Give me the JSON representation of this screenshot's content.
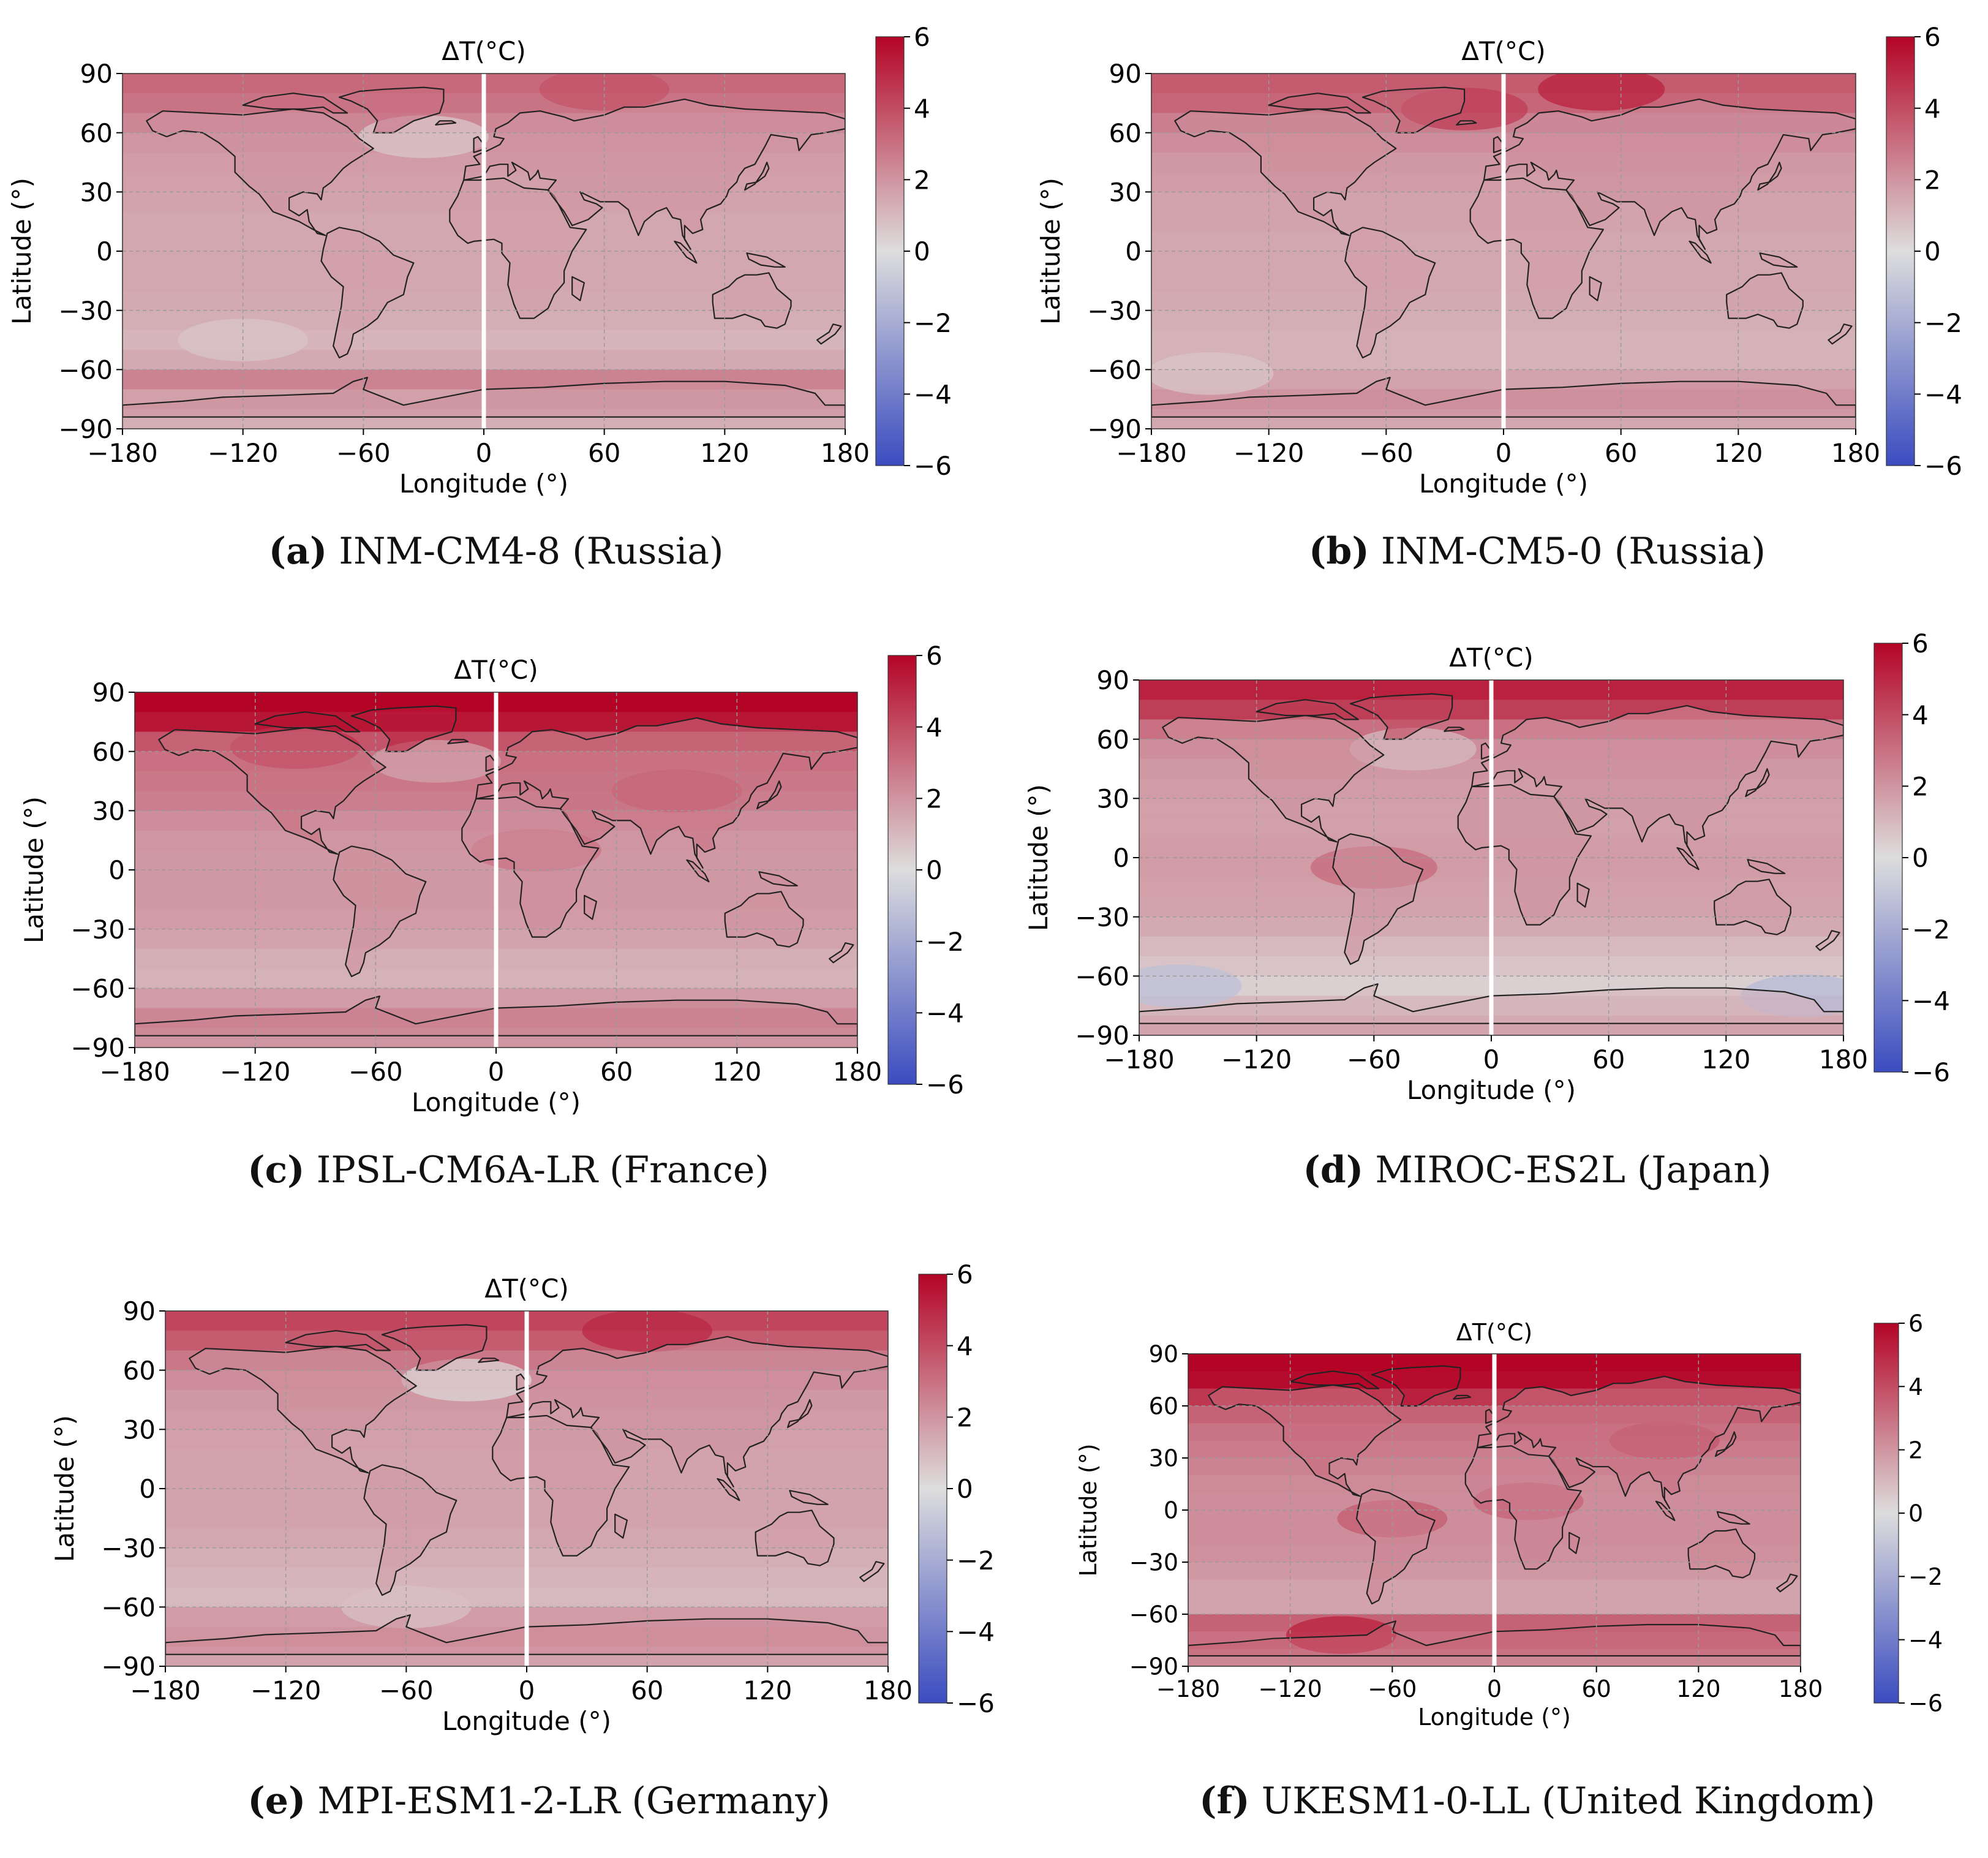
{
  "figure": {
    "colors": {
      "colormap_low": "#3b4cc0",
      "colormap_mid": "#dddddd",
      "colormap_high": "#b40426",
      "coastline": "#222222",
      "gridline": "#9a9a9a",
      "meridian_line": "#ffffff"
    }
  },
  "chart_data": [
    {
      "type": "heatmap",
      "panel_letter": "a",
      "caption": "INM-CM4-8 (Russia)",
      "title": "ΔT(°C)",
      "xlabel": "Longitude (°)",
      "ylabel": "Latitude (°)",
      "xlim": [
        -180,
        180
      ],
      "ylim": [
        -90,
        90
      ],
      "xticks": [
        "−180",
        "−120",
        "−60",
        "0",
        "60",
        "120",
        "180"
      ],
      "yticks": [
        "90",
        "60",
        "30",
        "0",
        "−30",
        "−60",
        "−90"
      ],
      "colorbar": {
        "range": [
          -6,
          6
        ],
        "ticks": [
          "6",
          "4",
          "2",
          "0",
          "−2",
          "−4",
          "−6"
        ]
      },
      "grid": true,
      "zonal_profile": {
        "lat": [
          85,
          75,
          65,
          55,
          45,
          35,
          25,
          15,
          5,
          -5,
          -15,
          -25,
          -35,
          -45,
          -55,
          -65,
          -75,
          -85
        ],
        "delta_t": [
          3.2,
          2.9,
          2.4,
          2.0,
          1.8,
          1.7,
          1.6,
          1.5,
          1.5,
          1.5,
          1.5,
          1.4,
          1.3,
          1.1,
          1.4,
          2.5,
          1.7,
          1.3
        ]
      },
      "anomalies": [
        {
          "lon": 60,
          "lat": 82,
          "delta_t": 3.8
        },
        {
          "lon": -30,
          "lat": 58,
          "delta_t": 0.6
        },
        {
          "lon": -120,
          "lat": -45,
          "delta_t": 0.7
        }
      ]
    },
    {
      "type": "heatmap",
      "panel_letter": "b",
      "caption": "INM-CM5-0 (Russia)",
      "title": "ΔT(°C)",
      "xlabel": "Longitude (°)",
      "ylabel": "Latitude (°)",
      "xlim": [
        -180,
        180
      ],
      "ylim": [
        -90,
        90
      ],
      "xticks": [
        "−180",
        "−120",
        "−60",
        "0",
        "60",
        "120",
        "180"
      ],
      "yticks": [
        "90",
        "60",
        "30",
        "0",
        "−30",
        "−60",
        "−90"
      ],
      "colorbar": {
        "range": [
          -6,
          6
        ],
        "ticks": [
          "6",
          "4",
          "2",
          "0",
          "−2",
          "−4",
          "−6"
        ]
      },
      "grid": true,
      "zonal_profile": {
        "lat": [
          85,
          75,
          65,
          55,
          45,
          35,
          25,
          15,
          5,
          -5,
          -15,
          -25,
          -35,
          -45,
          -55,
          -65,
          -75,
          -85
        ],
        "delta_t": [
          3.6,
          3.3,
          2.6,
          2.2,
          1.9,
          1.8,
          1.6,
          1.6,
          1.5,
          1.5,
          1.5,
          1.4,
          1.3,
          1.2,
          1.2,
          1.6,
          2.0,
          1.5
        ]
      },
      "anomalies": [
        {
          "lon": 50,
          "lat": 82,
          "delta_t": 5.2
        },
        {
          "lon": -20,
          "lat": 72,
          "delta_t": 4.4
        },
        {
          "lon": -150,
          "lat": -62,
          "delta_t": 0.7
        }
      ]
    },
    {
      "type": "heatmap",
      "panel_letter": "c",
      "caption": "IPSL-CM6A-LR (France)",
      "title": "ΔT(°C)",
      "xlabel": "Longitude (°)",
      "ylabel": "Latitude (°)",
      "xlim": [
        -180,
        180
      ],
      "ylim": [
        -90,
        90
      ],
      "xticks": [
        "−180",
        "−120",
        "−60",
        "0",
        "60",
        "120",
        "180"
      ],
      "yticks": [
        "90",
        "60",
        "30",
        "0",
        "−30",
        "−60",
        "−90"
      ],
      "colorbar": {
        "range": [
          -6,
          6
        ],
        "ticks": [
          "6",
          "4",
          "2",
          "0",
          "−2",
          "−4",
          "−6"
        ]
      },
      "grid": true,
      "zonal_profile": {
        "lat": [
          85,
          75,
          65,
          55,
          45,
          35,
          25,
          15,
          5,
          -5,
          -15,
          -25,
          -35,
          -45,
          -55,
          -65,
          -75,
          -85
        ],
        "delta_t": [
          6.0,
          5.5,
          3.8,
          3.0,
          2.8,
          2.6,
          2.2,
          2.0,
          1.9,
          1.9,
          1.9,
          1.8,
          1.6,
          1.3,
          1.2,
          1.8,
          2.4,
          2.0
        ]
      },
      "anomalies": [
        {
          "lon": -100,
          "lat": 62,
          "delta_t": 4.8
        },
        {
          "lon": 90,
          "lat": 40,
          "delta_t": 3.6
        },
        {
          "lon": 20,
          "lat": 10,
          "delta_t": 3.0
        },
        {
          "lon": -30,
          "lat": 55,
          "delta_t": 1.6
        }
      ]
    },
    {
      "type": "heatmap",
      "panel_letter": "d",
      "caption": "MIROC-ES2L (Japan)",
      "title": "ΔT(°C)",
      "xlabel": "Longitude (°)",
      "ylabel": "Latitude (°)",
      "xlim": [
        -180,
        180
      ],
      "ylim": [
        -90,
        90
      ],
      "xticks": [
        "−180",
        "−120",
        "−60",
        "0",
        "60",
        "120",
        "180"
      ],
      "yticks": [
        "90",
        "60",
        "30",
        "0",
        "−30",
        "−60",
        "−90"
      ],
      "colorbar": {
        "range": [
          -6,
          6
        ],
        "ticks": [
          "6",
          "4",
          "2",
          "0",
          "−2",
          "−4",
          "−6"
        ]
      },
      "grid": true,
      "zonal_profile": {
        "lat": [
          85,
          75,
          65,
          55,
          45,
          35,
          25,
          15,
          5,
          -5,
          -15,
          -25,
          -35,
          -45,
          -55,
          -65,
          -75,
          -85
        ],
        "delta_t": [
          5.2,
          4.4,
          3.0,
          2.2,
          1.9,
          1.8,
          1.7,
          1.7,
          1.8,
          1.8,
          1.7,
          1.6,
          1.4,
          1.0,
          0.7,
          0.4,
          1.0,
          1.6
        ]
      },
      "anomalies": [
        {
          "lon": -160,
          "lat": -65,
          "delta_t": -1.2
        },
        {
          "lon": 160,
          "lat": -70,
          "delta_t": -1.5
        },
        {
          "lon": -40,
          "lat": 55,
          "delta_t": 1.0
        },
        {
          "lon": -60,
          "lat": -5,
          "delta_t": 3.2
        }
      ]
    },
    {
      "type": "heatmap",
      "panel_letter": "e",
      "caption": "MPI-ESM1-2-LR (Germany)",
      "title": "ΔT(°C)",
      "xlabel": "Longitude (°)",
      "ylabel": "Latitude (°)",
      "xlim": [
        -180,
        180
      ],
      "ylim": [
        -90,
        90
      ],
      "xticks": [
        "−180",
        "−120",
        "−60",
        "0",
        "60",
        "120",
        "180"
      ],
      "yticks": [
        "90",
        "60",
        "30",
        "0",
        "−30",
        "−60",
        "−90"
      ],
      "colorbar": {
        "range": [
          -6,
          6
        ],
        "ticks": [
          "6",
          "4",
          "2",
          "0",
          "−2",
          "−4",
          "−6"
        ]
      },
      "grid": true,
      "zonal_profile": {
        "lat": [
          85,
          75,
          65,
          55,
          45,
          35,
          25,
          15,
          5,
          -5,
          -15,
          -25,
          -35,
          -45,
          -55,
          -65,
          -75,
          -85
        ],
        "delta_t": [
          4.2,
          3.6,
          2.8,
          2.2,
          1.9,
          1.8,
          1.7,
          1.6,
          1.6,
          1.6,
          1.6,
          1.5,
          1.3,
          1.1,
          1.0,
          1.8,
          2.0,
          1.6
        ]
      },
      "anomalies": [
        {
          "lon": 60,
          "lat": 80,
          "delta_t": 5.0
        },
        {
          "lon": -30,
          "lat": 55,
          "delta_t": 0.2
        },
        {
          "lon": -60,
          "lat": -60,
          "delta_t": 0.8
        }
      ]
    },
    {
      "type": "heatmap",
      "panel_letter": "f",
      "caption": "UKESM1-0-LL (United Kingdom)",
      "title": "ΔT(°C)",
      "xlabel": "Longitude (°)",
      "ylabel": "Latitude (°)",
      "xlim": [
        -180,
        180
      ],
      "ylim": [
        -90,
        90
      ],
      "xticks": [
        "−180",
        "−120",
        "−60",
        "0",
        "60",
        "120",
        "180"
      ],
      "yticks": [
        "90",
        "60",
        "30",
        "0",
        "−30",
        "−60",
        "−90"
      ],
      "colorbar": {
        "range": [
          -6,
          6
        ],
        "ticks": [
          "6",
          "4",
          "2",
          "0",
          "−2",
          "−4",
          "−6"
        ]
      },
      "grid": true,
      "zonal_profile": {
        "lat": [
          85,
          75,
          65,
          55,
          45,
          35,
          25,
          15,
          5,
          -5,
          -15,
          -25,
          -35,
          -45,
          -55,
          -65,
          -75,
          -85
        ],
        "delta_t": [
          6.0,
          5.8,
          4.6,
          3.4,
          2.9,
          2.7,
          2.5,
          2.3,
          2.2,
          2.2,
          2.2,
          2.1,
          1.9,
          1.6,
          1.6,
          3.4,
          3.0,
          2.4
        ]
      },
      "anomalies": [
        {
          "lon": -60,
          "lat": -5,
          "delta_t": 3.6
        },
        {
          "lon": 20,
          "lat": 5,
          "delta_t": 3.4
        },
        {
          "lon": -90,
          "lat": -72,
          "delta_t": 5.2
        },
        {
          "lon": 100,
          "lat": 40,
          "delta_t": 3.8
        }
      ]
    }
  ]
}
